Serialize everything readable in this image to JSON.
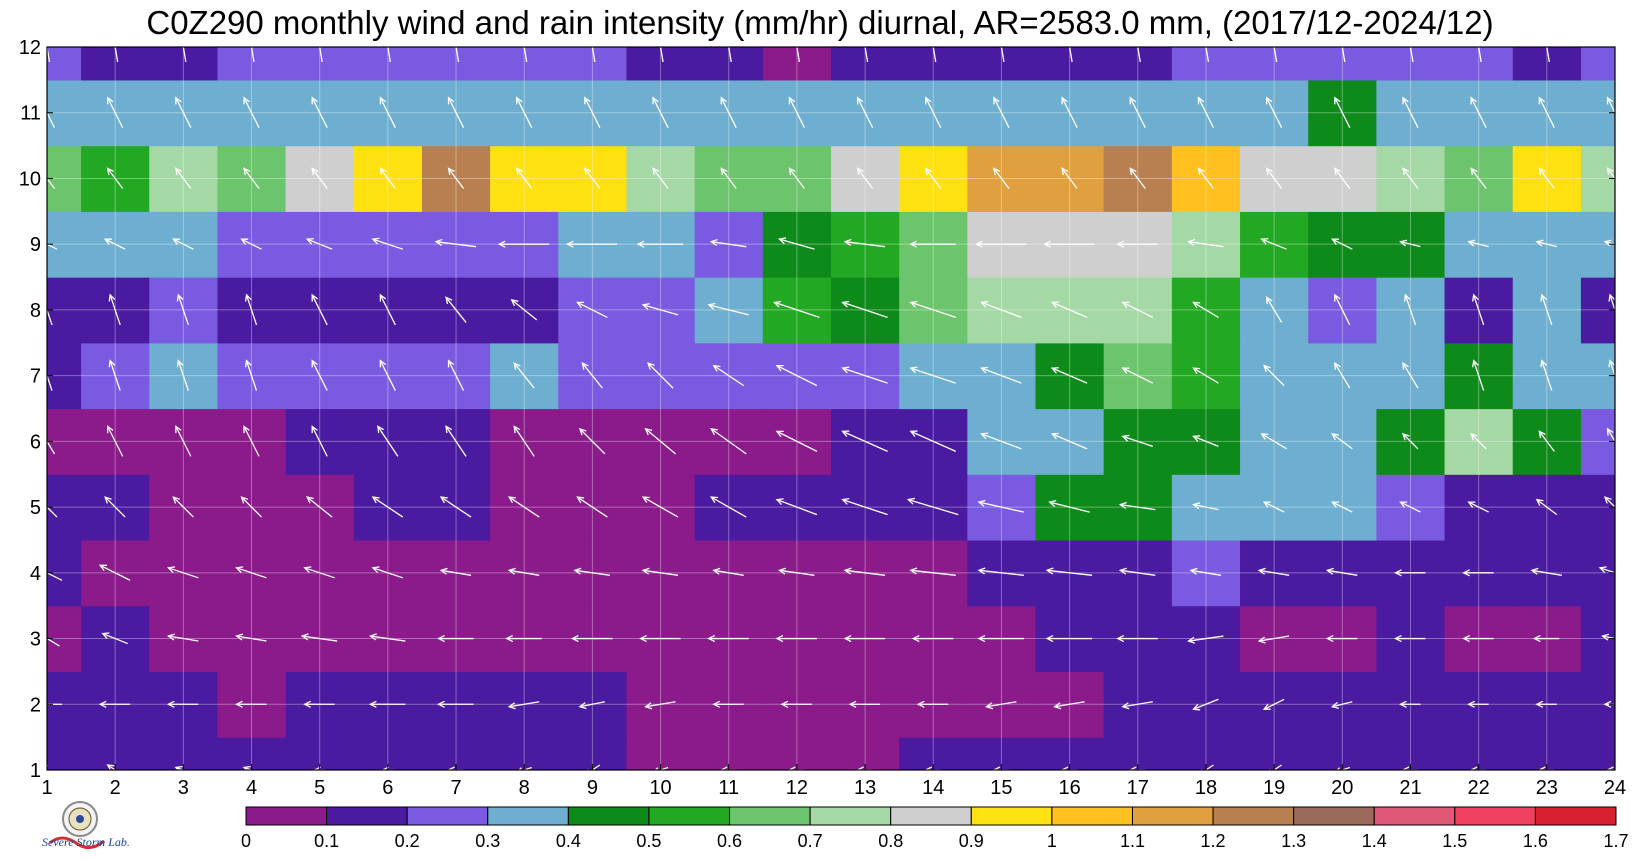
{
  "chart_data": {
    "type": "heatmap",
    "title": "C0Z290 monthly wind and rain intensity (mm/hr) diurnal, AR=2583.0 mm, (2017/12-2024/12)",
    "x_ticks": [
      "1",
      "2",
      "3",
      "4",
      "5",
      "6",
      "7",
      "8",
      "9",
      "10",
      "11",
      "12",
      "13",
      "14",
      "15",
      "16",
      "17",
      "18",
      "19",
      "20",
      "21",
      "22",
      "23",
      "24"
    ],
    "y_ticks": [
      "1",
      "2",
      "3",
      "4",
      "5",
      "6",
      "7",
      "8",
      "9",
      "10",
      "11",
      "12"
    ],
    "xlim": [
      1,
      24
    ],
    "ylim": [
      1,
      12
    ],
    "levels": [
      0,
      0.1,
      0.2,
      0.3,
      0.4,
      0.5,
      0.6,
      0.7,
      0.8,
      0.9,
      1,
      1.1,
      1.2,
      1.3,
      1.4,
      1.5,
      1.6,
      1.7
    ],
    "colorbar_labels": [
      "0",
      "0.1",
      "0.2",
      "0.3",
      "0.4",
      "0.5",
      "0.6",
      "0.7",
      "0.8",
      "0.9",
      "1",
      "1.1",
      "1.2",
      "1.3",
      "1.4",
      "1.5",
      "1.6",
      "1.7"
    ],
    "colors": [
      "#8b1a8b",
      "#4a1aa0",
      "#7a5ae0",
      "#6eaed0",
      "#0e8a1a",
      "#22a822",
      "#6cc46c",
      "#a4d8a4",
      "#cfcfcf",
      "#ffe010",
      "#ffc020",
      "#e0a040",
      "#b88050",
      "#9a6a5a",
      "#e05878",
      "#f04060",
      "#d82030"
    ],
    "intensity": [
      [
        0.15,
        0.12,
        0.12,
        0.12,
        0.15,
        0.15,
        0.15,
        0.15,
        0.12,
        0.05,
        0.05,
        0.05,
        0.05,
        0.15,
        0.15,
        0.15,
        0.15,
        0.15,
        0.15,
        0.15,
        0.15,
        0.15,
        0.15,
        0.15
      ],
      [
        0.15,
        0.15,
        0.15,
        0.05,
        0.15,
        0.15,
        0.15,
        0.15,
        0.12,
        0.05,
        0.05,
        0.05,
        0.05,
        0.05,
        0.05,
        0.05,
        0.15,
        0.15,
        0.15,
        0.15,
        0.15,
        0.15,
        0.15,
        0.15
      ],
      [
        0.05,
        0.15,
        0.05,
        0.05,
        0.05,
        0.05,
        0.05,
        0.05,
        0.05,
        0.05,
        0.05,
        0.05,
        0.05,
        0.05,
        0.05,
        0.15,
        0.15,
        0.15,
        0.05,
        0.05,
        0.15,
        0.05,
        0.05,
        0.12
      ],
      [
        0.15,
        0.05,
        0.05,
        0.05,
        0.05,
        0.05,
        0.05,
        0.05,
        0.05,
        0.05,
        0.05,
        0.05,
        0.05,
        0.05,
        0.15,
        0.15,
        0.15,
        0.25,
        0.15,
        0.15,
        0.15,
        0.15,
        0.15,
        0.15
      ],
      [
        0.15,
        0.15,
        0.05,
        0.05,
        0.05,
        0.15,
        0.15,
        0.05,
        0.05,
        0.05,
        0.15,
        0.15,
        0.15,
        0.15,
        0.25,
        0.45,
        0.45,
        0.35,
        0.35,
        0.35,
        0.25,
        0.15,
        0.15,
        0.15
      ],
      [
        0.05,
        0.05,
        0.05,
        0.05,
        0.15,
        0.15,
        0.15,
        0.05,
        0.05,
        0.05,
        0.05,
        0.05,
        0.15,
        0.15,
        0.35,
        0.35,
        0.45,
        0.45,
        0.35,
        0.35,
        0.45,
        0.75,
        0.45,
        0.25
      ],
      [
        0.15,
        0.25,
        0.35,
        0.25,
        0.25,
        0.25,
        0.25,
        0.35,
        0.25,
        0.25,
        0.25,
        0.25,
        0.25,
        0.35,
        0.35,
        0.45,
        0.65,
        0.55,
        0.35,
        0.35,
        0.35,
        0.45,
        0.35,
        0.35
      ],
      [
        0.15,
        0.15,
        0.25,
        0.15,
        0.15,
        0.15,
        0.15,
        0.15,
        0.25,
        0.25,
        0.35,
        0.55,
        0.45,
        0.65,
        0.75,
        0.75,
        0.75,
        0.55,
        0.35,
        0.25,
        0.35,
        0.15,
        0.35,
        0.15
      ],
      [
        0.35,
        0.35,
        0.35,
        0.25,
        0.25,
        0.25,
        0.25,
        0.25,
        0.35,
        0.35,
        0.25,
        0.45,
        0.55,
        0.65,
        0.85,
        0.85,
        0.85,
        0.75,
        0.55,
        0.45,
        0.45,
        0.35,
        0.35,
        0.35
      ],
      [
        0.65,
        0.55,
        0.75,
        0.65,
        0.85,
        0.95,
        1.25,
        0.95,
        0.95,
        0.75,
        0.65,
        0.65,
        0.85,
        0.95,
        1.15,
        1.15,
        1.25,
        1.05,
        0.85,
        0.85,
        0.75,
        0.65,
        0.95,
        0.75
      ],
      [
        0.35,
        0.35,
        0.35,
        0.35,
        0.35,
        0.35,
        0.35,
        0.35,
        0.35,
        0.35,
        0.35,
        0.35,
        0.35,
        0.35,
        0.35,
        0.35,
        0.35,
        0.35,
        0.35,
        0.45,
        0.35,
        0.35,
        0.35,
        0.35
      ],
      [
        0.25,
        0.15,
        0.15,
        0.25,
        0.25,
        0.25,
        0.25,
        0.25,
        0.25,
        0.15,
        0.15,
        0.05,
        0.15,
        0.15,
        0.15,
        0.15,
        0.15,
        0.25,
        0.25,
        0.25,
        0.25,
        0.25,
        0.15,
        0.25
      ]
    ],
    "wind_u": [
      [
        -0.2,
        -0.3,
        -0.3,
        -0.3,
        -0.2,
        -0.2,
        -0.3,
        -0.3,
        -0.3,
        -0.3,
        -0.3,
        -0.3,
        -0.3,
        -0.3,
        -0.3,
        -0.3,
        -0.3,
        -0.3,
        -0.3,
        -0.3,
        -0.3,
        -0.3,
        -0.3,
        -0.3
      ],
      [
        -0.6,
        -0.6,
        -0.6,
        -0.6,
        -0.6,
        -0.7,
        -0.7,
        -0.6,
        -0.5,
        -0.6,
        -0.6,
        -0.6,
        -0.6,
        -0.6,
        -0.6,
        -0.6,
        -0.6,
        -0.5,
        -0.4,
        -0.4,
        -0.4,
        -0.4,
        -0.4,
        -0.4
      ],
      [
        -0.5,
        -0.5,
        -0.6,
        -0.6,
        -0.7,
        -0.7,
        -0.7,
        -0.7,
        -0.8,
        -0.8,
        -0.8,
        -0.8,
        -0.8,
        -0.8,
        -0.9,
        -0.9,
        -0.8,
        -0.7,
        -0.6,
        -0.6,
        -0.6,
        -0.6,
        -0.5,
        -0.5
      ],
      [
        -0.6,
        -0.6,
        -0.6,
        -0.6,
        -0.6,
        -0.6,
        -0.6,
        -0.6,
        -0.7,
        -0.7,
        -0.6,
        -0.7,
        -0.8,
        -0.9,
        -0.9,
        -0.9,
        -0.7,
        -0.6,
        -0.6,
        -0.6,
        -0.6,
        -0.6,
        -0.6,
        -0.6
      ],
      [
        -0.4,
        -0.4,
        -0.4,
        -0.4,
        -0.5,
        -0.6,
        -0.6,
        -0.6,
        -0.6,
        -0.7,
        -0.7,
        -0.8,
        -0.9,
        -1.0,
        -0.9,
        -0.8,
        -0.7,
        -0.5,
        -0.4,
        -0.4,
        -0.4,
        -0.4,
        -0.4,
        -0.4
      ],
      [
        -0.3,
        -0.3,
        -0.3,
        -0.3,
        -0.3,
        -0.4,
        -0.4,
        -0.4,
        -0.5,
        -0.6,
        -0.7,
        -0.8,
        -0.9,
        -0.9,
        -0.8,
        -0.7,
        -0.6,
        -0.5,
        -0.5,
        -0.4,
        -0.3,
        -0.3,
        -0.3,
        -0.3
      ],
      [
        -0.2,
        -0.2,
        -0.2,
        -0.2,
        -0.3,
        -0.3,
        -0.3,
        -0.4,
        -0.4,
        -0.5,
        -0.6,
        -0.8,
        -0.9,
        -0.9,
        -0.8,
        -0.7,
        -0.6,
        -0.5,
        -0.4,
        -0.3,
        -0.3,
        -0.2,
        -0.2,
        -0.2
      ],
      [
        -0.2,
        -0.2,
        -0.2,
        -0.2,
        -0.3,
        -0.3,
        -0.4,
        -0.5,
        -0.6,
        -0.7,
        -0.8,
        -0.9,
        -0.9,
        -0.9,
        -0.8,
        -0.7,
        -0.6,
        -0.5,
        -0.3,
        -0.3,
        -0.2,
        -0.2,
        -0.2,
        -0.2
      ],
      [
        -0.4,
        -0.4,
        -0.4,
        -0.4,
        -0.5,
        -0.6,
        -0.8,
        -1.0,
        -1.0,
        -0.9,
        -0.7,
        -0.7,
        -0.8,
        -0.9,
        -1.0,
        -1.0,
        -0.8,
        -0.7,
        -0.5,
        -0.4,
        -0.4,
        -0.4,
        -0.4,
        -0.4
      ],
      [
        -0.3,
        -0.3,
        -0.3,
        -0.3,
        -0.3,
        -0.3,
        -0.3,
        -0.3,
        -0.3,
        -0.3,
        -0.3,
        -0.3,
        -0.3,
        -0.3,
        -0.3,
        -0.3,
        -0.3,
        -0.3,
        -0.3,
        -0.3,
        -0.3,
        -0.3,
        -0.3,
        -0.3
      ],
      [
        -0.3,
        -0.3,
        -0.3,
        -0.3,
        -0.3,
        -0.3,
        -0.3,
        -0.3,
        -0.3,
        -0.3,
        -0.3,
        -0.3,
        -0.3,
        -0.3,
        -0.3,
        -0.3,
        -0.3,
        -0.3,
        -0.3,
        -0.3,
        -0.3,
        -0.3,
        -0.3,
        -0.3
      ],
      [
        -0.1,
        -0.1,
        -0.1,
        -0.1,
        -0.1,
        -0.1,
        -0.1,
        -0.1,
        -0.1,
        -0.1,
        -0.1,
        -0.1,
        -0.1,
        -0.1,
        -0.1,
        -0.1,
        -0.1,
        -0.1,
        -0.1,
        -0.1,
        -0.1,
        -0.1,
        -0.1,
        -0.1
      ]
    ],
    "wind_v": [
      [
        0.3,
        0.2,
        0.1,
        0.1,
        0.0,
        0.0,
        0.0,
        -0.1,
        -0.2,
        -0.1,
        0.0,
        0.0,
        0.0,
        0.0,
        0.0,
        0.0,
        0.0,
        -0.2,
        -0.2,
        -0.1,
        0.0,
        0.0,
        0.0,
        0.0
      ],
      [
        0.0,
        0.0,
        0.0,
        0.0,
        0.0,
        0.0,
        0.0,
        -0.1,
        -0.1,
        -0.1,
        0.0,
        0.0,
        0.0,
        0.0,
        -0.1,
        -0.1,
        -0.1,
        -0.2,
        -0.2,
        -0.1,
        0.0,
        0.0,
        0.0,
        0.0
      ],
      [
        0.3,
        0.2,
        0.1,
        0.1,
        0.1,
        0.1,
        0.0,
        0.0,
        0.0,
        0.0,
        0.0,
        0.0,
        0.0,
        0.0,
        0.0,
        0.0,
        0.0,
        -0.1,
        -0.1,
        0.0,
        0.0,
        0.0,
        0.0,
        0.1
      ],
      [
        0.3,
        0.3,
        0.2,
        0.2,
        0.2,
        0.2,
        0.1,
        0.1,
        0.1,
        0.1,
        0.1,
        0.1,
        0.1,
        0.1,
        0.1,
        0.1,
        0.1,
        0.1,
        0.1,
        0.1,
        0.0,
        0.0,
        0.1,
        0.2
      ],
      [
        0.4,
        0.4,
        0.4,
        0.4,
        0.4,
        0.4,
        0.4,
        0.4,
        0.4,
        0.4,
        0.4,
        0.3,
        0.3,
        0.3,
        0.2,
        0.2,
        0.1,
        0.1,
        0.2,
        0.2,
        0.2,
        0.2,
        0.3,
        0.4
      ],
      [
        0.5,
        0.6,
        0.6,
        0.6,
        0.6,
        0.6,
        0.6,
        0.6,
        0.5,
        0.5,
        0.5,
        0.4,
        0.4,
        0.4,
        0.3,
        0.3,
        0.2,
        0.2,
        0.3,
        0.3,
        0.3,
        0.3,
        0.4,
        0.5
      ],
      [
        0.6,
        0.6,
        0.6,
        0.6,
        0.6,
        0.6,
        0.6,
        0.5,
        0.5,
        0.5,
        0.4,
        0.4,
        0.3,
        0.3,
        0.3,
        0.3,
        0.3,
        0.3,
        0.4,
        0.5,
        0.5,
        0.6,
        0.6,
        0.6
      ],
      [
        0.6,
        0.6,
        0.6,
        0.6,
        0.6,
        0.6,
        0.5,
        0.4,
        0.3,
        0.2,
        0.2,
        0.3,
        0.3,
        0.3,
        0.3,
        0.3,
        0.3,
        0.3,
        0.5,
        0.6,
        0.6,
        0.6,
        0.6,
        0.6
      ],
      [
        0.2,
        0.2,
        0.2,
        0.2,
        0.2,
        0.2,
        0.1,
        0.0,
        0.0,
        0.0,
        0.1,
        0.2,
        0.1,
        0.0,
        0.0,
        0.0,
        0.0,
        0.1,
        0.2,
        0.2,
        0.1,
        0.1,
        0.1,
        0.1
      ],
      [
        0.4,
        0.4,
        0.4,
        0.4,
        0.4,
        0.4,
        0.4,
        0.4,
        0.4,
        0.4,
        0.4,
        0.4,
        0.4,
        0.4,
        0.4,
        0.4,
        0.4,
        0.4,
        0.4,
        0.4,
        0.4,
        0.4,
        0.4,
        0.4
      ],
      [
        0.6,
        0.6,
        0.6,
        0.6,
        0.6,
        0.6,
        0.6,
        0.6,
        0.6,
        0.6,
        0.6,
        0.6,
        0.6,
        0.6,
        0.6,
        0.6,
        0.6,
        0.6,
        0.6,
        0.6,
        0.6,
        0.6,
        0.6,
        0.6
      ],
      [
        0.6,
        0.6,
        0.6,
        0.6,
        0.6,
        0.6,
        0.6,
        0.6,
        0.6,
        0.6,
        0.6,
        0.6,
        0.6,
        0.6,
        0.6,
        0.6,
        0.6,
        0.6,
        0.6,
        0.6,
        0.6,
        0.6,
        0.6,
        0.6
      ]
    ],
    "legend": "colorbar-bottom",
    "grid": true
  },
  "logo": {
    "text_1": "Severe",
    "text_2": "Storm",
    "text_3": "Lab."
  }
}
